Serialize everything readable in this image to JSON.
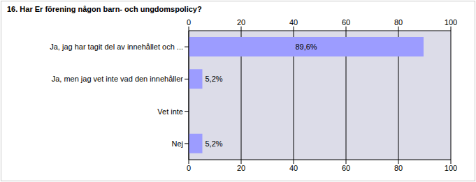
{
  "chart_data": {
    "type": "bar",
    "title": "16. Har Er förening någon barn- och ungdomspolicy?",
    "orientation": "horizontal",
    "categories": [
      "Ja, jag har tagit del av innehållet och ...",
      "Ja, men jag vet inte vad den innehåller",
      "Vet inte",
      "Nej"
    ],
    "values": [
      89.6,
      5.2,
      0,
      5.2
    ],
    "value_labels": [
      "89,6%",
      "5,2%",
      null,
      "5,2%"
    ],
    "data_labels": true,
    "color": "#9c9cff",
    "xlim": [
      0,
      100
    ],
    "xticks": [
      0,
      20,
      40,
      60,
      80,
      100
    ],
    "grid": true
  }
}
